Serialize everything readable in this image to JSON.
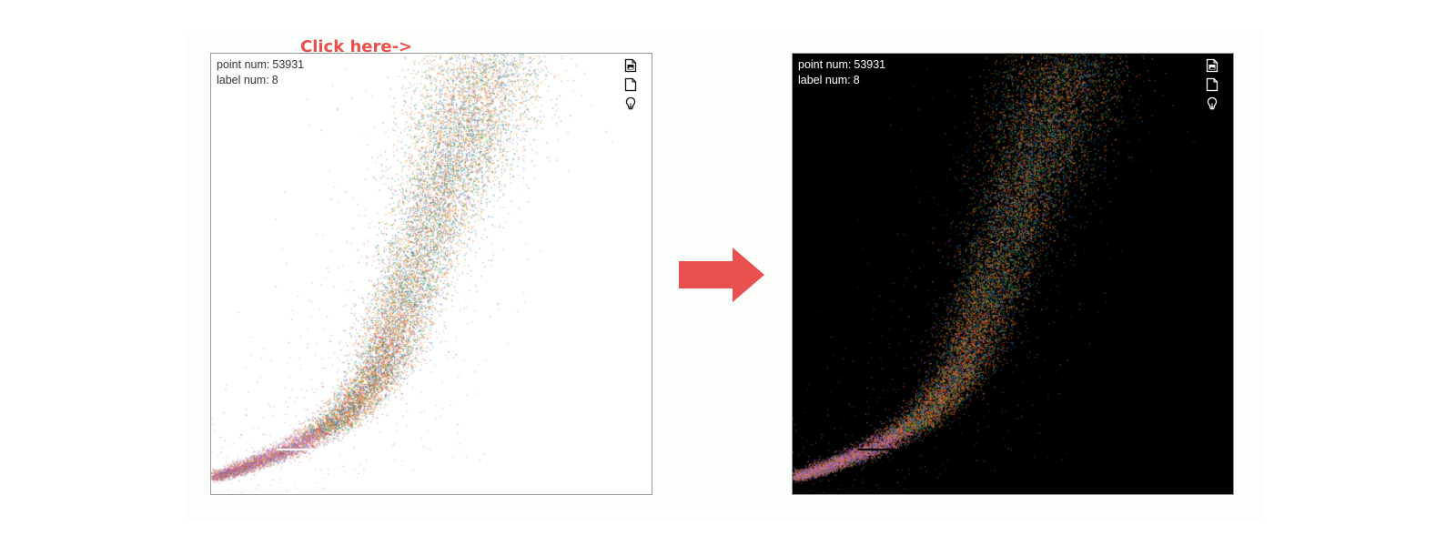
{
  "colors": {
    "accent": "#e8514f",
    "panel_light_bg": "#ffffff",
    "panel_dark_bg": "#000000",
    "label_palette": [
      "#1f77b4",
      "#ff7f0e",
      "#2ca02c",
      "#d62728",
      "#9467bd",
      "#8c564b",
      "#e377c2",
      "#7f7f7f"
    ]
  },
  "before": {
    "theme": "light",
    "point_label": "point num:",
    "point_num": "53931",
    "label_label": "label num:",
    "label_num": "8",
    "callout": "Click here->",
    "tools": [
      "save-image-icon",
      "document-icon",
      "lightbulb-icon"
    ]
  },
  "after": {
    "theme": "dark",
    "point_label": "point num:",
    "point_num": "53931",
    "label_label": "label num:",
    "label_num": "8",
    "tools": [
      "save-image-icon",
      "document-icon",
      "lightbulb-icon"
    ]
  }
}
